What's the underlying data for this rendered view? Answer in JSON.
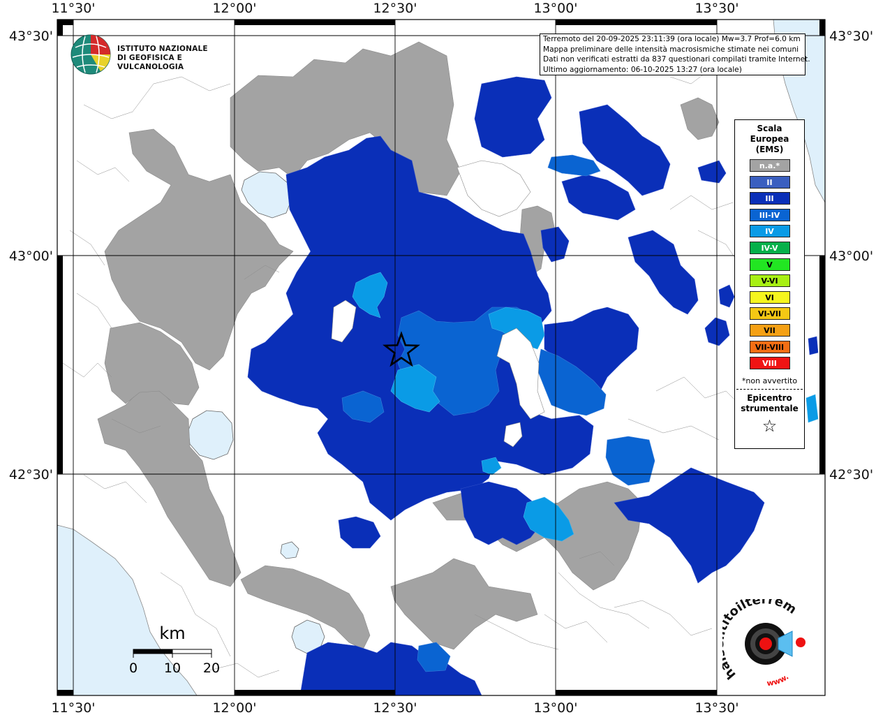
{
  "map": {
    "lon_ticks": [
      "11°30'",
      "12°00'",
      "12°30'",
      "13°00'",
      "13°30'"
    ],
    "lat_ticks": [
      "43°30'",
      "43°00'",
      "42°30'"
    ],
    "colors": {
      "sea": "#dff0fb",
      "land": "#ffffff",
      "na": "#a3a3a3",
      "ems_II": "#3a5fc0",
      "ems_III": "#0a2fb8",
      "ems_III_IV": "#0a64d2",
      "ems_IV": "#0a9be6",
      "border": "#888888"
    }
  },
  "logo": {
    "line1": "ISTITUTO NAZIONALE",
    "line2": "DI GEOFISICA E VULCANOLOGIA"
  },
  "info": {
    "line1": "Terremoto del 20-09-2025 23:11:39 (ora locale) Mw=3.7 Prof=6.0 km",
    "line2": "Mappa preliminare delle intensità macrosismiche stimate nei comuni",
    "line3": "Dati non verificati estratti da 837 questionari compilati tramite Internet.",
    "line4": "Ultimo aggiornamento: 06-10-2025 13:27 (ora locale)"
  },
  "legend": {
    "title1": "Scala",
    "title2": "Europea",
    "title3": "(EMS)",
    "items": [
      {
        "label": "n.a.*",
        "color": "#a3a3a3",
        "text_color": "#ffffff"
      },
      {
        "label": "II",
        "color": "#3a5fc0",
        "text_color": "#ffffff"
      },
      {
        "label": "III",
        "color": "#0a2fb8",
        "text_color": "#ffffff"
      },
      {
        "label": "III-IV",
        "color": "#0a64d2",
        "text_color": "#ffffff"
      },
      {
        "label": "IV",
        "color": "#0a9be6",
        "text_color": "#ffffff"
      },
      {
        "label": "IV-V",
        "color": "#06b04a",
        "text_color": "#ffffff"
      },
      {
        "label": "V",
        "color": "#22e622",
        "text_color": "#000000"
      },
      {
        "label": "V-VI",
        "color": "#a8f014",
        "text_color": "#000000"
      },
      {
        "label": "VI",
        "color": "#f5f51e",
        "text_color": "#000000"
      },
      {
        "label": "VI-VII",
        "color": "#f5c814",
        "text_color": "#000000"
      },
      {
        "label": "VII",
        "color": "#f5a014",
        "text_color": "#000000"
      },
      {
        "label": "VII-VIII",
        "color": "#f56e14",
        "text_color": "#000000"
      },
      {
        "label": "VIII",
        "color": "#f01414",
        "text_color": "#ffffff"
      }
    ],
    "note": "*non avvertito",
    "epi1": "Epicentro",
    "epi2": "strumentale",
    "star": "☆"
  },
  "scale": {
    "unit": "km",
    "labels": [
      "0",
      "10",
      "20"
    ]
  },
  "hst": {
    "text": "haisentitoilterremoto.it",
    "www": "www."
  }
}
